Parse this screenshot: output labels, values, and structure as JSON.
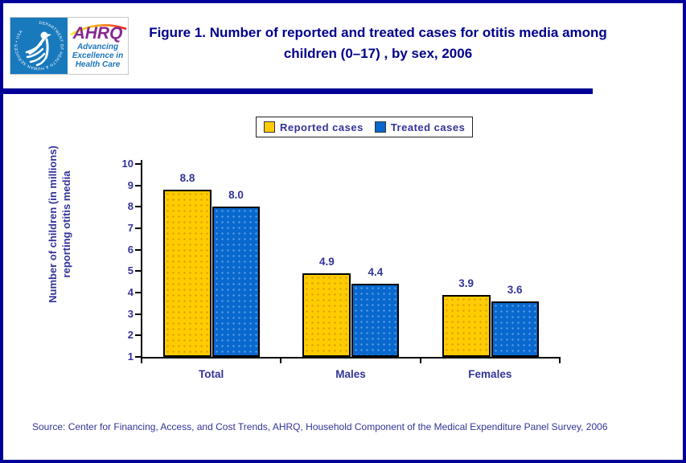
{
  "header": {
    "hhs_logo": {
      "ring_text": "DEPARTMENT OF HEALTH & HUMAN SERVICES • USA"
    },
    "ahrq_logo": {
      "acronym": "AHRQ",
      "tagline_lines": [
        "Advancing",
        "Excellence in",
        "Health Care"
      ]
    },
    "title": "Figure 1. Number of reported and treated cases for otitis media among children (0–17) , by sex, 2006"
  },
  "legend": {
    "items": [
      {
        "label": "Reported cases",
        "color": "#FFCC00"
      },
      {
        "label": "Treated cases",
        "color": "#0868CE"
      }
    ]
  },
  "chart_data": {
    "type": "bar",
    "title": "Figure 1. Number of reported and treated cases for otitis media among children (0–17) , by sex, 2006",
    "categories": [
      "Total",
      "Males",
      "Females"
    ],
    "series": [
      {
        "name": "Reported cases",
        "color": "#FFCC00",
        "values": [
          8.8,
          4.9,
          3.9
        ]
      },
      {
        "name": "Treated cases",
        "color": "#0868CE",
        "values": [
          8.0,
          4.4,
          3.6
        ]
      }
    ],
    "xlabel": "",
    "ylabel": "Number of children (in millions) reporting otitis media",
    "ylim": [
      1,
      10
    ],
    "ytick_step": 1,
    "grid": false,
    "legend_position": "top-center",
    "value_labels": true,
    "value_label_format": "one-decimal"
  },
  "footer": {
    "source": "Source: Center for Financing, Access, and Cost Trends, AHRQ, Household Component of the Medical Expenditure Panel Survey, 2006"
  },
  "colors": {
    "frame": "#000099",
    "title_text": "#00008B",
    "chart_text": "#333399",
    "hhs_blue": "#1879BD",
    "ahrq_purple": "#86288F",
    "ahrq_blue": "#1B75BC"
  }
}
